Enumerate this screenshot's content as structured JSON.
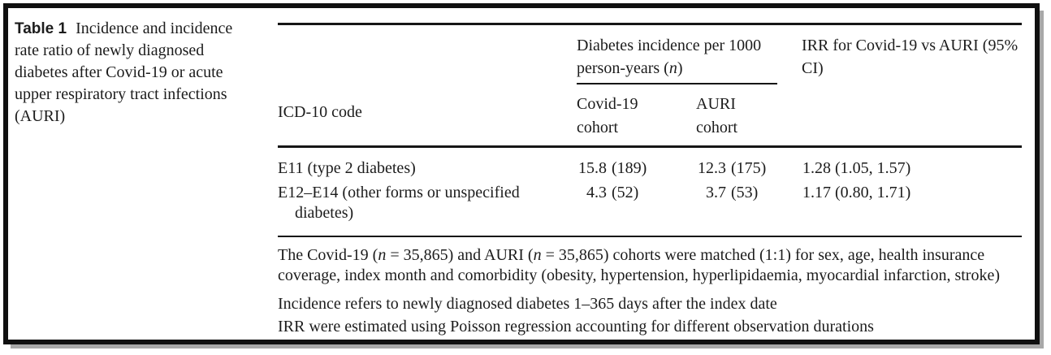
{
  "caption": {
    "label": "Table 1",
    "lines": [
      "Incidence and incidence",
      "rate ratio of newly diagnosed",
      "diabetes after Covid-19 or acute",
      "upper respiratory tract infections",
      "(AURI)"
    ]
  },
  "table": {
    "spanner": {
      "line1": "Diabetes incidence per 1000",
      "line2_pre": "person-years (",
      "line2_n": "n",
      "line2_post": ")"
    },
    "irr_header": {
      "lines": [
        "IRR for Covid-19 vs AURI (95%",
        "CI)"
      ]
    },
    "col_headers": {
      "icd": "ICD-10 code",
      "covid": [
        "Covid-19",
        "cohort"
      ],
      "auri": [
        "AURI",
        "cohort"
      ]
    },
    "rows": [
      {
        "icd_lines": [
          "E11 (type 2 diabetes)",
          ""
        ],
        "covid_rate": "15.8",
        "covid_n": "(189)",
        "auri_rate": "12.3",
        "auri_n": "(175)",
        "irr": "1.28 (1.05, 1.57)"
      },
      {
        "icd_lines": [
          "E12–E14 (other forms or unspecified",
          "diabetes)"
        ],
        "covid_rate": "4.3",
        "covid_n": "(52)",
        "auri_rate": "3.7",
        "auri_n": "(53)",
        "irr": "1.17 (0.80, 1.71)"
      }
    ]
  },
  "footnotes": {
    "fn1": {
      "seg1": "The Covid-19 (",
      "n1": "n",
      "seg2": " = 35,865) and AURI (",
      "n2": "n",
      "seg3": " = 35,865) cohorts were matched (1:1) for sex, age, health insurance coverage, index month and comorbidity (obesity, hypertension, hyperlipidaemia, myocardial infarction, stroke)"
    },
    "fn2": "Incidence refers to newly diagnosed diabetes 1–365 days after the index date",
    "fn3": "IRR were estimated using Poisson regression accounting for different observation durations"
  },
  "colors": {
    "text": "#1c1c1c",
    "rule": "#161616",
    "frame_border": "#101010",
    "shadow": "#a8a8a8",
    "background": "#ffffff"
  }
}
